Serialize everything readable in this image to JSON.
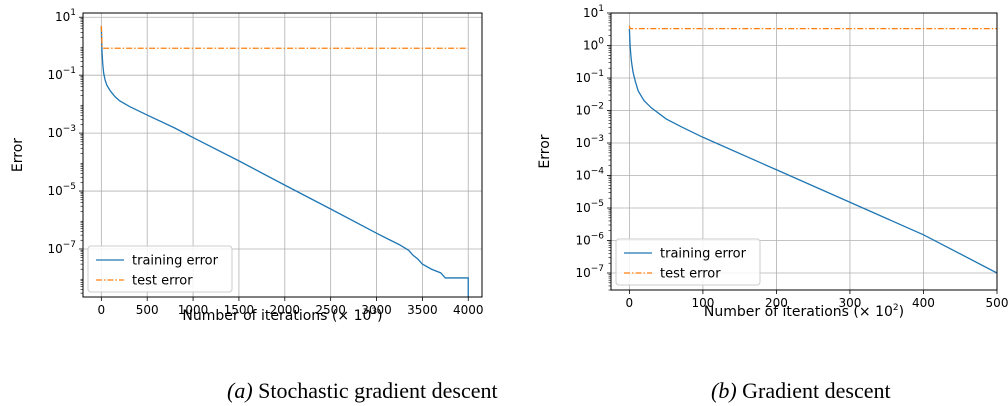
{
  "colors": {
    "training": "#1f77b4",
    "test": "#ff7f0e",
    "grid": "#b0b0b0"
  },
  "chart_data": [
    {
      "type": "line",
      "caption": {
        "label": "(a)",
        "text": " Stochastic gradient descent"
      },
      "xlabel": "Number of iterations (× 10",
      "xlabel_sup": "3",
      "xlabel_end": ")",
      "ylabel": "Error",
      "yscale": "log",
      "xlim": [
        -200,
        4150
      ],
      "ylim": [
        2.2e-09,
        14
      ],
      "xticks": [
        0,
        500,
        1000,
        1500,
        2000,
        2500,
        3000,
        3500,
        4000
      ],
      "yticks": [
        {
          "base": "10",
          "exp": "1",
          "value": 10
        },
        {
          "base": "10",
          "exp": "−1",
          "value": 0.1
        },
        {
          "base": "10",
          "exp": "−3",
          "value": 0.001
        },
        {
          "base": "10",
          "exp": "−5",
          "value": 1e-05
        },
        {
          "base": "10",
          "exp": "−7",
          "value": 1e-07
        }
      ],
      "grid": true,
      "legend_position": "lower-left",
      "series": [
        {
          "name": "training error",
          "style": "solid",
          "x": [
            0,
            3,
            8,
            15,
            25,
            40,
            60,
            100,
            150,
            200,
            300,
            500,
            800,
            1000,
            1500,
            2000,
            2500,
            3000,
            3250,
            3350,
            3400,
            3450,
            3500,
            3600,
            3700,
            3750,
            4000,
            4000
          ],
          "y": [
            5,
            1.5,
            0.6,
            0.25,
            0.12,
            0.07,
            0.045,
            0.028,
            0.018,
            0.013,
            0.0085,
            0.0042,
            0.0015,
            0.0007,
            0.00011,
            1.6e-05,
            2.4e-06,
            3.5e-07,
            1.4e-07,
            9e-08,
            6e-08,
            4.5e-08,
            3e-08,
            2e-08,
            1.5e-08,
            1e-08,
            1e-08,
            2.2e-09
          ]
        },
        {
          "name": "test error",
          "style": "dashdot",
          "x": [
            0,
            8,
            15,
            4000
          ],
          "y": [
            5,
            0.9,
            0.85,
            0.85
          ]
        }
      ]
    },
    {
      "type": "line",
      "caption": {
        "label": "(b)",
        "text": " Gradient descent"
      },
      "xlabel": "Number of iterations (× 10",
      "xlabel_sup": "2",
      "xlabel_end": ")",
      "ylabel": "Error",
      "yscale": "log",
      "xlim": [
        -25,
        500
      ],
      "ylim": [
        3e-08,
        10
      ],
      "xticks": [
        0,
        100,
        200,
        300,
        400,
        500
      ],
      "yticks": [
        {
          "base": "10",
          "exp": "1",
          "value": 10
        },
        {
          "base": "10",
          "exp": "0",
          "value": 1
        },
        {
          "base": "10",
          "exp": "−1",
          "value": 0.1
        },
        {
          "base": "10",
          "exp": "−2",
          "value": 0.01
        },
        {
          "base": "10",
          "exp": "−3",
          "value": 0.001
        },
        {
          "base": "10",
          "exp": "−4",
          "value": 0.0001
        },
        {
          "base": "10",
          "exp": "−5",
          "value": 1e-05
        },
        {
          "base": "10",
          "exp": "−6",
          "value": 1e-06
        },
        {
          "base": "10",
          "exp": "−7",
          "value": 1e-07
        }
      ],
      "grid": true,
      "legend_position": "lower-left",
      "series": [
        {
          "name": "training error",
          "style": "solid",
          "x": [
            0,
            1,
            2,
            3,
            5,
            8,
            12,
            20,
            30,
            50,
            70,
            100,
            200,
            300,
            400,
            500
          ],
          "y": [
            3.2,
            1.0,
            0.5,
            0.3,
            0.15,
            0.08,
            0.04,
            0.02,
            0.012,
            0.0055,
            0.0032,
            0.0015,
            0.00015,
            1.5e-05,
            1.5e-06,
            1e-07
          ]
        },
        {
          "name": "test error",
          "style": "dashdot",
          "x": [
            0,
            1,
            3,
            500
          ],
          "y": [
            4,
            3.3,
            3.3,
            3.3
          ]
        }
      ]
    }
  ]
}
